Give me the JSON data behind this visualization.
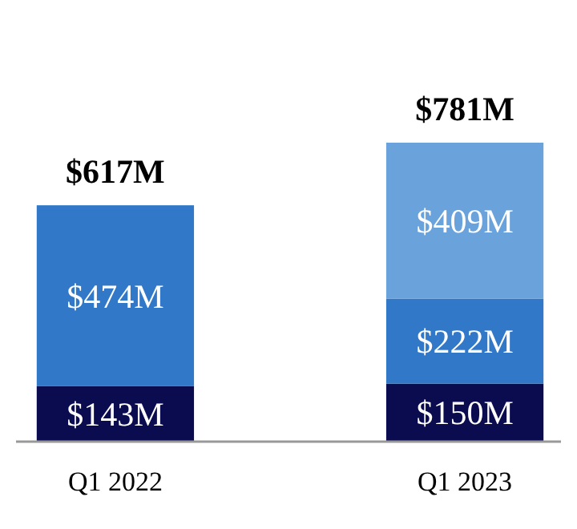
{
  "chart_data": {
    "type": "bar",
    "stacked": true,
    "categories": [
      "Q1 2022",
      "Q1 2023"
    ],
    "series": [
      {
        "color": "#0b0b4f",
        "values": [
          143,
          150
        ],
        "value_labels": [
          "$143M",
          "$150M"
        ]
      },
      {
        "color": "#3278c8",
        "values": [
          474,
          222
        ],
        "value_labels": [
          "$474M",
          "$222M"
        ]
      },
      {
        "color": "#6aa2dc",
        "values": [
          null,
          409
        ],
        "value_labels": [
          null,
          "$409M"
        ]
      }
    ],
    "totals": [
      "$617M",
      "$781M"
    ]
  }
}
